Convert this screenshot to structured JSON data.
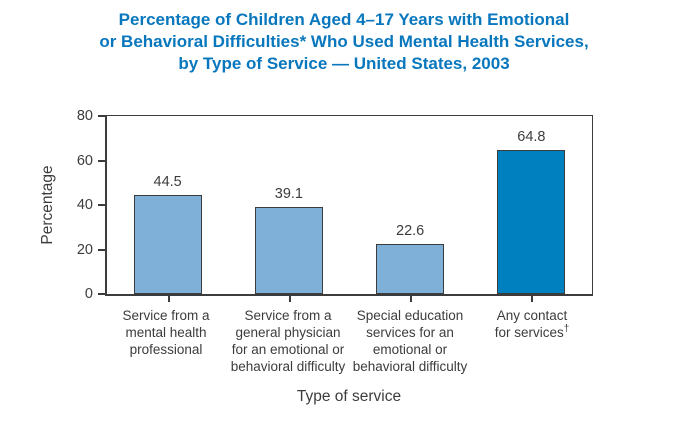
{
  "title": {
    "lines": [
      "Percentage of Children Aged 4–17 Years with Emotional",
      "or Behavioral Difficulties* Who Used Mental Health Services,",
      "by Type of Service — United States, 2003"
    ],
    "color": "#0877BD"
  },
  "chart_data": {
    "type": "bar",
    "categories": [
      [
        "Service from a",
        "mental health",
        "professional"
      ],
      [
        "Service from a",
        "general physician",
        "for an emotional or",
        "behavioral difficulty"
      ],
      [
        "Special education",
        "services for an",
        "emotional or",
        "behavioral difficulty"
      ],
      [
        "Any contact",
        "for services†"
      ]
    ],
    "values": [
      44.5,
      39.1,
      22.6,
      64.8
    ],
    "value_labels": [
      "44.5",
      "39.1",
      "22.6",
      "64.8"
    ],
    "bar_colors": [
      "#7FB0D8",
      "#7FB0D8",
      "#7FB0D8",
      "#0080BF"
    ],
    "bar_border_color": "#3C3C3C",
    "title": "Percentage of Children Aged 4–17 Years with Emotional or Behavioral Difficulties* Who Used Mental Health Services, by Type of Service — United States, 2003",
    "xlabel": "Type of service",
    "ylabel": "Percentage",
    "ylim": [
      0,
      80
    ],
    "yticks": [
      0,
      20,
      40,
      60,
      80
    ],
    "grid": false,
    "legend": "none",
    "frame": "full-box"
  }
}
